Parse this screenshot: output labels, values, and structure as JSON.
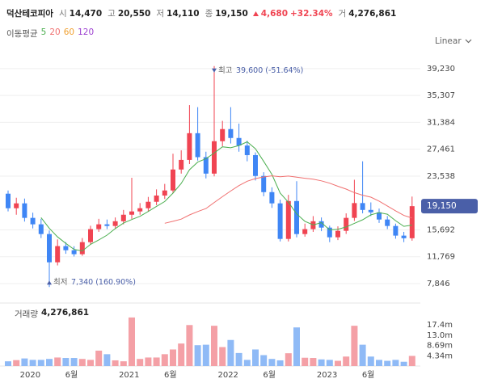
{
  "header": {
    "name": "덕산테코피아",
    "fields": [
      {
        "label": "시",
        "value": "14,470"
      },
      {
        "label": "고",
        "value": "20,550"
      },
      {
        "label": "저",
        "value": "14,110"
      },
      {
        "label": "종",
        "value": "19,150"
      }
    ],
    "change": "4,680",
    "change_pct": "+32.34%",
    "volume_label": "거",
    "volume": "4,276,861"
  },
  "scale_mode": "Linear",
  "chart_data": {
    "type": "candlestick",
    "categories": [
      null,
      null,
      "2020",
      null,
      null,
      null,
      null,
      "6월",
      null,
      null,
      null,
      null,
      null,
      null,
      "2021",
      null,
      null,
      null,
      null,
      "6월",
      null,
      null,
      null,
      null,
      null,
      null,
      "2022",
      null,
      null,
      null,
      null,
      "6월",
      null,
      null,
      null,
      null,
      null,
      null,
      "2023",
      null,
      null,
      null,
      null,
      "6월",
      null,
      null,
      null,
      null,
      null,
      null
    ],
    "open": [
      20970,
      18850,
      19560,
      17440,
      16500,
      15080,
      10960,
      13320,
      12720,
      12140,
      13900,
      15800,
      16500,
      16260,
      16950,
      17900,
      18380,
      18850,
      19790,
      20700,
      21440,
      24500,
      25900,
      29800,
      26300,
      23900,
      28630,
      30400,
      29100,
      28000,
      26600,
      23560,
      21200,
      19560,
      14370,
      19900,
      15080,
      15800,
      16950,
      16020,
      14610,
      15550,
      17440,
      19600,
      18600,
      18250,
      17200,
      16260,
      14850,
      14470
    ],
    "high": [
      21440,
      20380,
      20260,
      18200,
      17300,
      15600,
      14300,
      13900,
      13300,
      14500,
      16300,
      17300,
      17200,
      17500,
      18600,
      23300,
      19600,
      20500,
      21600,
      22400,
      26800,
      27300,
      33900,
      33600,
      27100,
      39600,
      31600,
      33600,
      31200,
      28700,
      27000,
      24100,
      21900,
      20100,
      20800,
      22800,
      16600,
      17700,
      17500,
      16300,
      16200,
      18100,
      23000,
      25700,
      19700,
      18800,
      17700,
      16600,
      15400,
      20550
    ],
    "low": [
      18380,
      17900,
      16900,
      15900,
      14500,
      7340,
      10500,
      12200,
      11800,
      11900,
      13500,
      15400,
      15800,
      15900,
      16500,
      17300,
      17900,
      18400,
      19300,
      20200,
      21000,
      23900,
      25300,
      25800,
      23200,
      23500,
      27900,
      28300,
      27100,
      25700,
      22900,
      20600,
      18900,
      14000,
      14000,
      14600,
      14700,
      15400,
      15500,
      13900,
      14200,
      15100,
      17000,
      18100,
      17700,
      16700,
      15800,
      14400,
      13900,
      14110
    ],
    "close": [
      18850,
      19560,
      17440,
      16500,
      15080,
      10960,
      13320,
      12720,
      12140,
      13900,
      15800,
      16500,
      16260,
      16950,
      17900,
      18380,
      18850,
      19790,
      20700,
      21440,
      24500,
      25900,
      29800,
      26300,
      23900,
      28630,
      30400,
      29100,
      28000,
      26600,
      23560,
      21200,
      19560,
      14370,
      19900,
      15080,
      15800,
      16950,
      16020,
      14610,
      15550,
      17440,
      19600,
      18600,
      18250,
      17200,
      16260,
      14850,
      14470,
      19150
    ],
    "up_color": "#f04452",
    "down_color": "#3f86f5",
    "ylim": [
      5370,
      48060
    ],
    "yticks": [
      {
        "value": 7846,
        "label": "7,846"
      },
      {
        "value": 11769,
        "label": "11,769"
      },
      {
        "value": 15692,
        "label": "15,692"
      },
      {
        "value": 23538,
        "label": "23,538"
      },
      {
        "value": 27461,
        "label": "27,461"
      },
      {
        "value": 31384,
        "label": "31,384"
      },
      {
        "value": 35307,
        "label": "35,307"
      },
      {
        "value": 39230,
        "label": "39,230"
      }
    ],
    "grid": true,
    "moving_average_label": "이동평균",
    "moving_averages": [
      {
        "name": "5",
        "color": "#4caf50",
        "values": [
          null,
          null,
          null,
          null,
          17486,
          15908,
          14660,
          13716,
          12844,
          12608,
          13576,
          14212,
          14920,
          15882,
          16682,
          17198,
          17668,
          18374,
          19124,
          19832,
          21056,
          22466,
          24468,
          25588,
          26080,
          26906,
          27806,
          27666,
          28006,
          28546,
          27532,
          25692,
          23784,
          21058,
          19718,
          18022,
          16942,
          16420,
          16750,
          15692,
          15786,
          16114,
          16644,
          17160,
          17888,
          18218,
          17982,
          17032,
          16206,
          16386
        ]
      },
      {
        "name": "20",
        "color": "#f07070",
        "values": [
          null,
          null,
          null,
          null,
          null,
          null,
          null,
          null,
          null,
          null,
          null,
          null,
          null,
          null,
          null,
          null,
          null,
          null,
          null,
          16652,
          16935,
          17252,
          17870,
          18360,
          18801,
          19684,
          20538,
          21357,
          22150,
          22785,
          23173,
          23408,
          23573,
          23444,
          23544,
          23379,
          23227,
          23085,
          22851,
          22509,
          22062,
          21639,
          21129,
          20744,
          20461,
          19890,
          19183,
          18470,
          17794,
          17421
        ]
      },
      {
        "name": "60",
        "color": "#f0a030"
      },
      {
        "name": "120",
        "color": "#9c3fd0"
      }
    ],
    "high_note": {
      "label": "최고",
      "text": "39,600 (-51.64%)",
      "value": 39600
    },
    "low_note": {
      "label": "최저",
      "text": "7,340 (160.90%)",
      "value": 7340
    },
    "last_price": {
      "value": 19150,
      "label": "19,150",
      "color": "#4a5fa8"
    },
    "volume": {
      "title": "거래량",
      "last_label": "4,276,861",
      "values": [
        2000000,
        2500000,
        3200000,
        2600000,
        2600000,
        3000000,
        3600000,
        3400000,
        3400000,
        3000000,
        2600000,
        6500000,
        5000000,
        2400000,
        2000000,
        20500000,
        3000000,
        3600000,
        3600000,
        5000000,
        7000000,
        9500000,
        17300000,
        8800000,
        9000000,
        17000000,
        8000000,
        11000000,
        5500000,
        2600000,
        7000000,
        4600000,
        3000000,
        2400000,
        5400000,
        16300000,
        3500000,
        3400000,
        2800000,
        2600000,
        2200000,
        4000000,
        17000000,
        9000000,
        4000000,
        2600000,
        2200000,
        2600000,
        1800000,
        4276861
      ],
      "up_color": "#f4a0a6",
      "down_color": "#8fbaf6",
      "ylim": [
        0,
        24900000
      ],
      "yticks": [
        {
          "value": 4340000,
          "label": "4.34m"
        },
        {
          "value": 8690000,
          "label": "8.69m"
        },
        {
          "value": 13000000,
          "label": "13.0m"
        },
        {
          "value": 17400000,
          "label": "17.4m"
        }
      ]
    }
  }
}
